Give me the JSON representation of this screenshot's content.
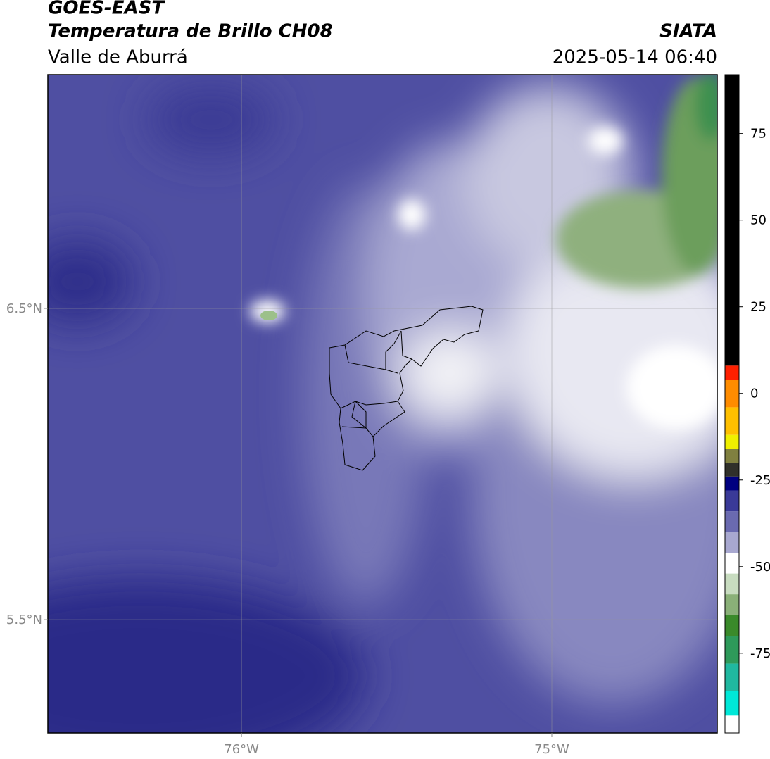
{
  "header": {
    "title": "GOES-EAST",
    "subtitle": "Temperatura de Brillo CH08",
    "region": "Valle de Aburrá",
    "source": "SIATA",
    "datetime": "2025-05-14 06:40"
  },
  "map": {
    "xlim": [
      -76.624,
      -74.467
    ],
    "ylim": [
      5.136,
      7.251
    ],
    "xticks": [
      {
        "value": -76,
        "label": "76°W"
      },
      {
        "value": -75,
        "label": "75°W"
      }
    ],
    "yticks": [
      {
        "value": 6.5,
        "label": "6.5°N"
      },
      {
        "value": 5.5,
        "label": "5.5°N"
      }
    ],
    "grid": true
  },
  "colorbar": {
    "lim": [
      -98,
      92
    ],
    "ticks": [
      75,
      50,
      25,
      0,
      -25,
      -50,
      -75
    ],
    "segments": [
      {
        "from": 8,
        "to": 92,
        "color": "#000000"
      },
      {
        "from": 4,
        "to": 8,
        "color": "#ff2000"
      },
      {
        "from": -4,
        "to": 4,
        "color": "#ff8c00"
      },
      {
        "from": -12,
        "to": -4,
        "color": "#ffc000"
      },
      {
        "from": -16,
        "to": -12,
        "color": "#f0f000"
      },
      {
        "from": -20,
        "to": -16,
        "color": "#808040"
      },
      {
        "from": -24,
        "to": -20,
        "color": "#30302a"
      },
      {
        "from": -28,
        "to": -24,
        "color": "#000080"
      },
      {
        "from": -34,
        "to": -28,
        "color": "#3a3a98"
      },
      {
        "from": -40,
        "to": -34,
        "color": "#6a6ab0"
      },
      {
        "from": -46,
        "to": -40,
        "color": "#a8a8d0"
      },
      {
        "from": -52,
        "to": -46,
        "color": "#ffffff"
      },
      {
        "from": -58,
        "to": -52,
        "color": "#c8dcc0"
      },
      {
        "from": -64,
        "to": -58,
        "color": "#8ab078"
      },
      {
        "from": -70,
        "to": -64,
        "color": "#3a8a2a"
      },
      {
        "from": -78,
        "to": -70,
        "color": "#2e9a5a"
      },
      {
        "from": -86,
        "to": -78,
        "color": "#20b8a0"
      },
      {
        "from": -93,
        "to": -86,
        "color": "#00e8d8"
      },
      {
        "from": -98,
        "to": -93,
        "color": "#ffffff"
      }
    ]
  }
}
